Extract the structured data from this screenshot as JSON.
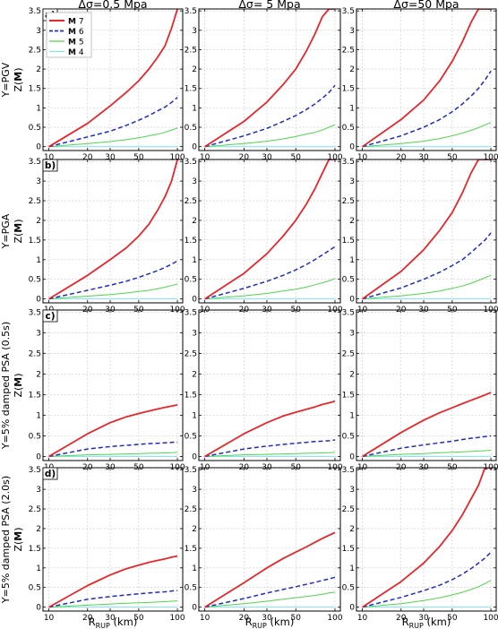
{
  "figure": {
    "column_titles": [
      "Δσ=0.5 Mpa",
      "Δσ= 5 Mpa",
      "Δσ=50 Mpa"
    ],
    "row_labels": [
      "Y=PGV",
      "Y=PGA",
      "Y=5% damped PSA (0.5s)",
      "Y=5% damped PSA (2.0s)"
    ],
    "panel_tags": [
      "a)",
      "b)",
      "c)",
      "d)"
    ],
    "ylabel": "Z(M)",
    "xlabel_main": "R",
    "xlabel_sub": "RUP",
    "xlabel_unit": " (km)",
    "colors": {
      "m7": "#e8262a",
      "m6": "#1f2bc4",
      "m5": "#4fd64a",
      "m4": "#7fe3f0",
      "grid": "#c8c8c8"
    }
  },
  "chart_data": {
    "type": "line",
    "x_scale": "log",
    "xlim": [
      9,
      110
    ],
    "ylim": [
      -0.1,
      3.55
    ],
    "x_ticks": [
      10,
      20,
      30,
      50,
      100
    ],
    "y_ticks": [
      0,
      0.5,
      1,
      1.5,
      2,
      2.5,
      3,
      3.5
    ],
    "y_tick_labels": [
      "0",
      "0.5",
      "1",
      "1.5",
      "2",
      "2.5",
      "3",
      "3.5"
    ],
    "grid": true,
    "legend": {
      "location": "upper-left of panel a",
      "entries": [
        {
          "bold": "M",
          "text": " 7",
          "style": "solid"
        },
        {
          "bold": "M",
          "text": " 6",
          "style": "dashed"
        },
        {
          "bold": "M",
          "text": " 5",
          "style": "solid-thin"
        },
        {
          "bold": "M",
          "text": " 4",
          "style": "solid-thin"
        }
      ]
    },
    "x": [
      10,
      20,
      30,
      40,
      50,
      60,
      70,
      80,
      90,
      100
    ],
    "panels": [
      {
        "row": 0,
        "col": 0,
        "series": [
          {
            "name": "M 7",
            "values": [
              0,
              0.6,
              1.05,
              1.4,
              1.7,
              2.0,
              2.3,
              2.6,
              3.05,
              3.55
            ]
          },
          {
            "name": "M 6",
            "values": [
              0,
              0.25,
              0.4,
              0.55,
              0.68,
              0.8,
              0.92,
              1.02,
              1.14,
              1.27
            ]
          },
          {
            "name": "M 5",
            "values": [
              0,
              0.08,
              0.13,
              0.18,
              0.23,
              0.28,
              0.32,
              0.37,
              0.43,
              0.48
            ]
          },
          {
            "name": "M 4",
            "values": [
              0,
              0,
              0,
              0,
              0,
              0,
              0,
              0,
              0,
              0
            ]
          }
        ]
      },
      {
        "row": 0,
        "col": 1,
        "series": [
          {
            "name": "M 7",
            "values": [
              0,
              0.65,
              1.15,
              1.6,
              2.0,
              2.45,
              2.9,
              3.35,
              3.55,
              3.55
            ]
          },
          {
            "name": "M 6",
            "values": [
              0,
              0.28,
              0.47,
              0.65,
              0.8,
              0.95,
              1.1,
              1.25,
              1.4,
              1.58
            ]
          },
          {
            "name": "M 5",
            "values": [
              0,
              0.08,
              0.14,
              0.2,
              0.26,
              0.32,
              0.37,
              0.43,
              0.5,
              0.56
            ]
          },
          {
            "name": "M 4",
            "values": [
              0,
              0,
              0,
              0,
              0,
              0,
              0,
              0,
              0,
              0
            ]
          }
        ]
      },
      {
        "row": 0,
        "col": 2,
        "series": [
          {
            "name": "M 7",
            "values": [
              0,
              0.7,
              1.2,
              1.7,
              2.2,
              2.7,
              3.2,
              3.55,
              3.55,
              3.55
            ]
          },
          {
            "name": "M 6",
            "values": [
              0,
              0.28,
              0.5,
              0.7,
              0.9,
              1.1,
              1.3,
              1.5,
              1.72,
              1.95
            ]
          },
          {
            "name": "M 5",
            "values": [
              0,
              0.08,
              0.14,
              0.21,
              0.28,
              0.35,
              0.42,
              0.49,
              0.56,
              0.62
            ]
          },
          {
            "name": "M 4",
            "values": [
              0,
              0,
              0,
              0,
              0,
              0,
              0,
              0,
              0,
              0
            ]
          }
        ]
      },
      {
        "row": 1,
        "col": 0,
        "series": [
          {
            "name": "M 7",
            "values": [
              0,
              0.6,
              1.0,
              1.3,
              1.6,
              1.9,
              2.25,
              2.6,
              3.0,
              3.55
            ]
          },
          {
            "name": "M 6",
            "values": [
              0,
              0.22,
              0.35,
              0.45,
              0.55,
              0.64,
              0.72,
              0.8,
              0.88,
              0.97
            ]
          },
          {
            "name": "M 5",
            "values": [
              0,
              0.07,
              0.11,
              0.15,
              0.19,
              0.22,
              0.26,
              0.3,
              0.34,
              0.38
            ]
          },
          {
            "name": "M 4",
            "values": [
              0,
              0,
              0,
              0,
              0,
              0,
              0,
              0,
              0,
              0
            ]
          }
        ]
      },
      {
        "row": 1,
        "col": 1,
        "series": [
          {
            "name": "M 7",
            "values": [
              0,
              0.65,
              1.15,
              1.6,
              2.0,
              2.4,
              2.8,
              3.2,
              3.55,
              3.55
            ]
          },
          {
            "name": "M 6",
            "values": [
              0,
              0.27,
              0.45,
              0.6,
              0.74,
              0.87,
              1.0,
              1.12,
              1.23,
              1.33
            ]
          },
          {
            "name": "M 5",
            "values": [
              0,
              0.08,
              0.14,
              0.2,
              0.25,
              0.3,
              0.36,
              0.41,
              0.46,
              0.52
            ]
          },
          {
            "name": "M 4",
            "values": [
              0,
              0,
              0,
              0,
              0,
              0,
              0,
              0,
              0,
              0
            ]
          }
        ]
      },
      {
        "row": 1,
        "col": 2,
        "series": [
          {
            "name": "M 7",
            "values": [
              0,
              0.7,
              1.25,
              1.75,
              2.2,
              2.7,
              3.2,
              3.55,
              3.55,
              3.55
            ]
          },
          {
            "name": "M 6",
            "values": [
              0,
              0.28,
              0.5,
              0.68,
              0.85,
              1.0,
              1.18,
              1.35,
              1.5,
              1.68
            ]
          },
          {
            "name": "M 5",
            "values": [
              0,
              0.08,
              0.14,
              0.2,
              0.27,
              0.33,
              0.4,
              0.47,
              0.54,
              0.6
            ]
          },
          {
            "name": "M 4",
            "values": [
              0,
              0,
              0,
              0,
              0,
              0,
              0,
              0,
              0,
              0
            ]
          }
        ]
      },
      {
        "row": 2,
        "col": 0,
        "series": [
          {
            "name": "M 7",
            "values": [
              0,
              0.55,
              0.82,
              0.96,
              1.04,
              1.1,
              1.15,
              1.19,
              1.22,
              1.25
            ]
          },
          {
            "name": "M 6",
            "values": [
              0,
              0.18,
              0.24,
              0.27,
              0.29,
              0.31,
              0.32,
              0.33,
              0.34,
              0.35
            ]
          },
          {
            "name": "M 5",
            "values": [
              0,
              0.04,
              0.05,
              0.06,
              0.07,
              0.075,
              0.08,
              0.085,
              0.09,
              0.1
            ]
          },
          {
            "name": "M 4",
            "values": [
              0,
              0,
              0,
              0,
              0,
              0,
              0,
              0,
              0,
              0
            ]
          }
        ]
      },
      {
        "row": 2,
        "col": 1,
        "series": [
          {
            "name": "M 7",
            "values": [
              0,
              0.55,
              0.82,
              0.98,
              1.07,
              1.14,
              1.2,
              1.26,
              1.3,
              1.34
            ]
          },
          {
            "name": "M 6",
            "values": [
              0,
              0.18,
              0.25,
              0.29,
              0.32,
              0.34,
              0.36,
              0.37,
              0.38,
              0.4
            ]
          },
          {
            "name": "M 5",
            "values": [
              0,
              0.04,
              0.05,
              0.06,
              0.07,
              0.075,
              0.08,
              0.085,
              0.09,
              0.1
            ]
          },
          {
            "name": "M 4",
            "values": [
              0,
              0,
              0,
              0,
              0,
              0,
              0,
              0,
              0,
              0
            ]
          }
        ]
      },
      {
        "row": 2,
        "col": 2,
        "series": [
          {
            "name": "M 7",
            "values": [
              0,
              0.58,
              0.88,
              1.06,
              1.18,
              1.28,
              1.36,
              1.43,
              1.49,
              1.55
            ]
          },
          {
            "name": "M 6",
            "values": [
              0,
              0.2,
              0.28,
              0.33,
              0.37,
              0.41,
              0.44,
              0.46,
              0.48,
              0.5
            ]
          },
          {
            "name": "M 5",
            "values": [
              0,
              0.05,
              0.07,
              0.09,
              0.1,
              0.11,
              0.12,
              0.13,
              0.14,
              0.15
            ]
          },
          {
            "name": "M 4",
            "values": [
              0,
              0,
              0,
              0,
              0,
              0,
              0,
              0,
              0,
              0
            ]
          }
        ]
      },
      {
        "row": 3,
        "col": 0,
        "series": [
          {
            "name": "M 7",
            "values": [
              0,
              0.55,
              0.82,
              0.98,
              1.07,
              1.14,
              1.19,
              1.23,
              1.27,
              1.3
            ]
          },
          {
            "name": "M 6",
            "values": [
              0,
              0.2,
              0.27,
              0.31,
              0.34,
              0.36,
              0.38,
              0.39,
              0.41,
              0.42
            ]
          },
          {
            "name": "M 5",
            "values": [
              0,
              0.05,
              0.08,
              0.1,
              0.11,
              0.12,
              0.13,
              0.14,
              0.15,
              0.16
            ]
          },
          {
            "name": "M 4",
            "values": [
              0,
              0,
              0,
              0,
              0,
              0,
              0,
              0,
              0,
              0
            ]
          }
        ]
      },
      {
        "row": 3,
        "col": 1,
        "series": [
          {
            "name": "M 7",
            "values": [
              0,
              0.62,
              1.0,
              1.24,
              1.4,
              1.53,
              1.65,
              1.75,
              1.83,
              1.9
            ]
          },
          {
            "name": "M 6",
            "values": [
              0,
              0.22,
              0.36,
              0.45,
              0.52,
              0.58,
              0.63,
              0.68,
              0.72,
              0.76
            ]
          },
          {
            "name": "M 5",
            "values": [
              0,
              0.09,
              0.15,
              0.2,
              0.24,
              0.27,
              0.3,
              0.33,
              0.36,
              0.38
            ]
          },
          {
            "name": "M 4",
            "values": [
              0,
              0,
              0,
              0,
              0,
              0,
              0,
              0,
              0,
              0
            ]
          }
        ]
      },
      {
        "row": 3,
        "col": 2,
        "series": [
          {
            "name": "M 7",
            "values": [
              0,
              0.65,
              1.12,
              1.55,
              1.95,
              2.35,
              2.75,
              3.1,
              3.55,
              3.55
            ]
          },
          {
            "name": "M 6",
            "values": [
              0,
              0.25,
              0.42,
              0.56,
              0.7,
              0.84,
              0.98,
              1.12,
              1.25,
              1.4
            ]
          },
          {
            "name": "M 5",
            "values": [
              0,
              0.09,
              0.17,
              0.24,
              0.31,
              0.38,
              0.45,
              0.52,
              0.6,
              0.68
            ]
          },
          {
            "name": "M 4",
            "values": [
              0,
              0,
              0,
              0,
              0,
              0,
              0,
              0,
              0,
              0
            ]
          }
        ]
      }
    ]
  }
}
